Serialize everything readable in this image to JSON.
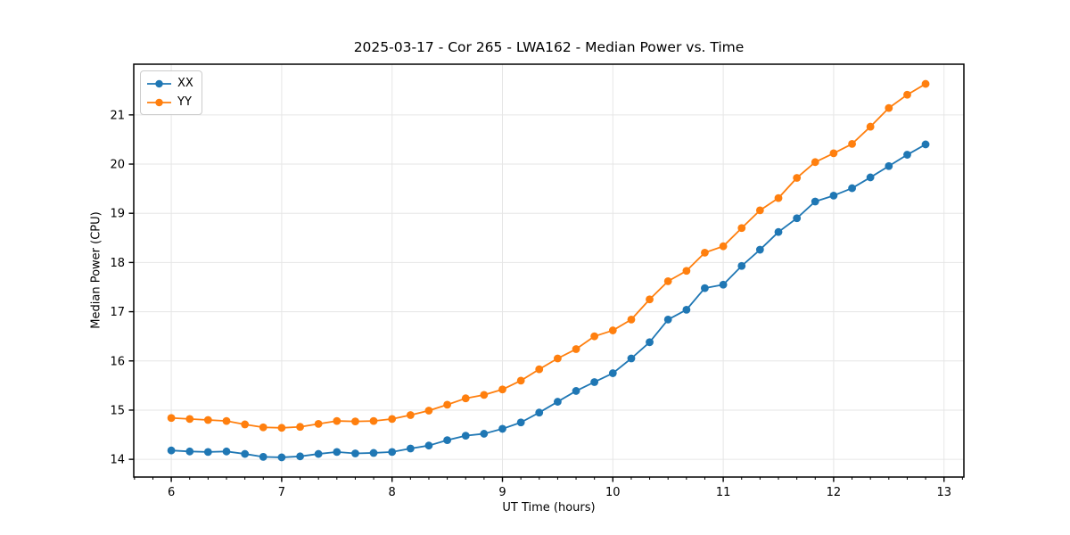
{
  "chart_data": {
    "type": "line",
    "title": "2025-03-17 - Cor 265 - LWA162 - Median Power vs. Time",
    "xlabel": "UT Time (hours)",
    "ylabel": "Median Power (CPU)",
    "xlim": [
      5.66,
      13.18
    ],
    "ylim": [
      13.64,
      22.03
    ],
    "xticks": [
      6,
      7,
      8,
      9,
      10,
      11,
      12,
      13
    ],
    "yticks": [
      14,
      15,
      16,
      17,
      18,
      19,
      20,
      21
    ],
    "minor_xtick_step": 0.1667,
    "grid": true,
    "legend_position": "upper left",
    "marker": "o",
    "x": [
      6.0,
      6.167,
      6.333,
      6.5,
      6.667,
      6.833,
      7.0,
      7.167,
      7.333,
      7.5,
      7.667,
      7.833,
      8.0,
      8.167,
      8.333,
      8.5,
      8.667,
      8.833,
      9.0,
      9.167,
      9.333,
      9.5,
      9.667,
      9.833,
      10.0,
      10.167,
      10.333,
      10.5,
      10.667,
      10.833,
      11.0,
      11.167,
      11.333,
      11.5,
      11.667,
      11.833,
      12.0,
      12.167,
      12.333,
      12.5,
      12.667,
      12.833
    ],
    "series": [
      {
        "name": "XX",
        "color": "#1f77b4",
        "values": [
          14.18,
          14.16,
          14.15,
          14.16,
          14.11,
          14.05,
          14.04,
          14.06,
          14.11,
          14.15,
          14.12,
          14.13,
          14.15,
          14.22,
          14.28,
          14.39,
          14.48,
          14.52,
          14.62,
          14.75,
          14.95,
          15.17,
          15.39,
          15.57,
          15.75,
          16.05,
          16.38,
          16.84,
          17.04,
          17.48,
          17.55,
          17.93,
          18.26,
          18.62,
          18.9,
          19.24,
          19.36,
          19.51,
          19.73,
          19.96,
          20.19,
          20.4
        ]
      },
      {
        "name": "YY",
        "color": "#ff7f0e",
        "values": [
          14.84,
          14.82,
          14.8,
          14.78,
          14.71,
          14.65,
          14.64,
          14.66,
          14.72,
          14.78,
          14.77,
          14.78,
          14.82,
          14.9,
          14.99,
          15.11,
          15.24,
          15.31,
          15.42,
          15.6,
          15.83,
          16.05,
          16.24,
          16.5,
          16.62,
          16.84,
          17.25,
          17.62,
          17.83,
          18.2,
          18.33,
          18.7,
          19.06,
          19.31,
          19.72,
          20.04,
          20.22,
          20.41,
          20.76,
          21.14,
          21.41,
          21.63
        ]
      }
    ]
  }
}
